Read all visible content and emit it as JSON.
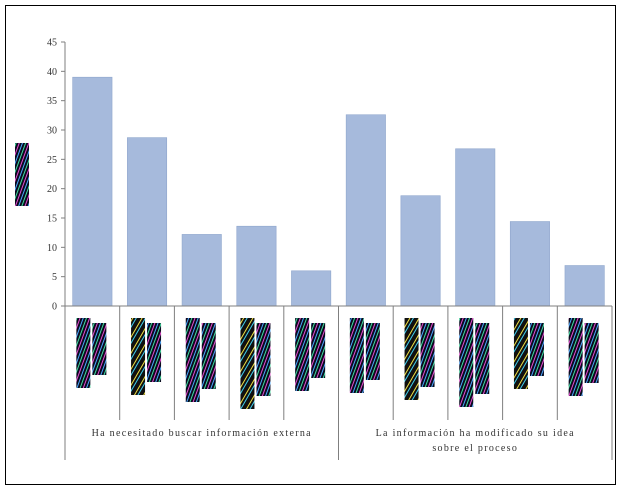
{
  "chart_data": {
    "type": "bar",
    "title": "",
    "xlabel": "",
    "ylabel": "",
    "ylim": [
      0,
      45
    ],
    "y_ticks": [
      0,
      5,
      10,
      15,
      20,
      25,
      30,
      35,
      40,
      45
    ],
    "grid": false,
    "legend": "left",
    "colors": {
      "bar": "#a6badc",
      "bar_stroke": "#8fa6cc",
      "axis": "#7f7f7f"
    },
    "groups": [
      {
        "label": "Ha necesitado buscar información externa",
        "values": [
          39,
          28.7,
          12.2,
          13.6,
          6
        ]
      },
      {
        "label": "La información ha modificado su idea sobre el proceso",
        "values": [
          32.6,
          18.8,
          26.8,
          14.4,
          6.9
        ]
      }
    ]
  }
}
